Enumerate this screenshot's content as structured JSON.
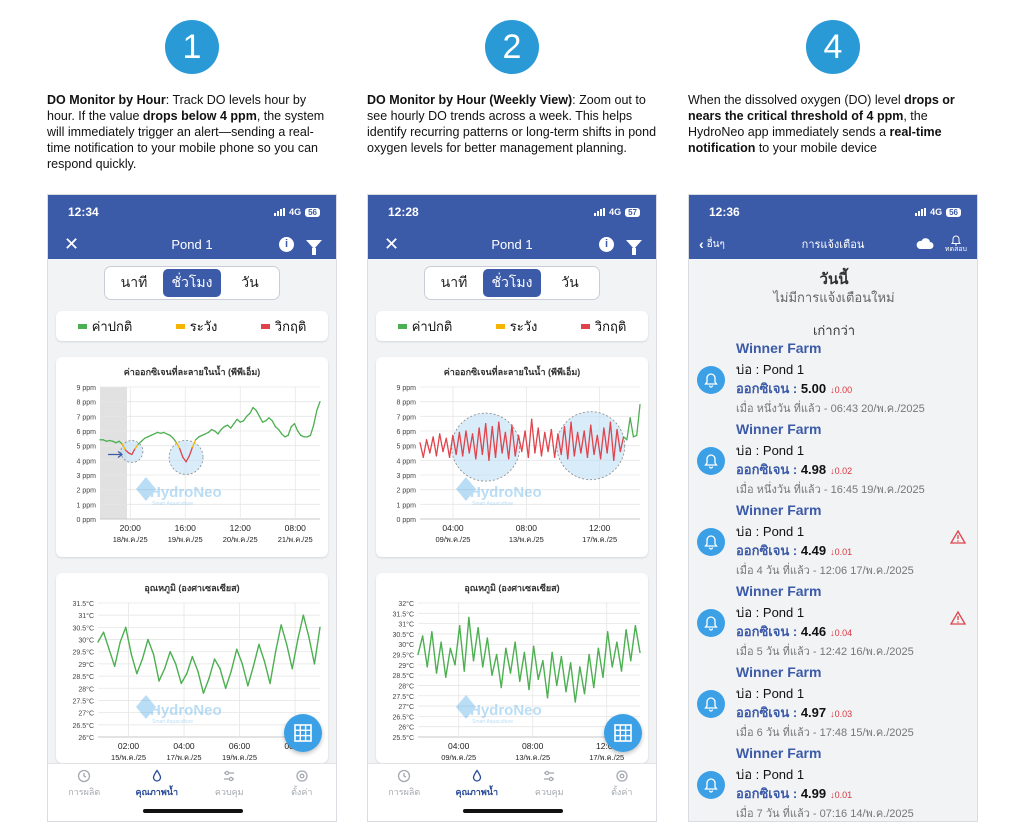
{
  "steps": [
    {
      "number": "1",
      "title": "DO Monitor by Hour",
      "desc_parts": [
        ": Track DO levels hour by hour. If the value ",
        "drops below 4 ppm",
        ", the system will immediately trigger an alert—sending a real-time notification to your mobile phone so you can respond quickly."
      ]
    },
    {
      "number": "2",
      "title": "DO Monitor by Hour (Weekly View)",
      "desc_parts": [
        ":   Zoom out to see hourly DO trends across a week. This helps identify recurring patterns or long-term shifts in pond oxygen levels for better management planning."
      ]
    },
    {
      "number": "4",
      "desc_parts": [
        "When the dissolved oxygen (DO) level ",
        "drops or nears the critical threshold of 4 ppm",
        ", the HydroNeo app immediately sends a ",
        "real-time notification",
        " to your mobile device"
      ]
    }
  ],
  "phone1": {
    "time": "12:34",
    "network": "4G",
    "battery": "56",
    "title": "Pond 1"
  },
  "phone2": {
    "time": "12:28",
    "network": "4G",
    "battery": "57",
    "title": "Pond 1"
  },
  "phone3": {
    "time": "12:36",
    "network": "4G",
    "battery": "56"
  },
  "segment": {
    "minute": "นาที",
    "hour": "ชั่วโมง",
    "day": "วัน"
  },
  "legend": {
    "normal": "ค่าปกติ",
    "caution": "ระวัง",
    "critical": "วิกฤติ"
  },
  "colors": {
    "header": "#3b5aa8",
    "normal": "#4caf50",
    "caution": "#f5b400",
    "critical": "#e0434b",
    "accent": "#2a9ad6"
  },
  "watermark": {
    "brand": "HydroNeo",
    "tagline": "Smart Aquaculture"
  },
  "tabs": {
    "production": "การผลิต",
    "water_quality": "คุณภาพน้ำ",
    "control": "ควบคุม",
    "settings": "ตั้งค่า"
  },
  "chart_data": [
    {
      "type": "line",
      "title": "ค่าออกซิเจนที่ละลายในน้ำ (พีพีเอ็ม)",
      "ylim": [
        0,
        9
      ],
      "y_ticks": [
        "0 ppm",
        "1 ppm",
        "2 ppm",
        "3 ppm",
        "4 ppm",
        "5 ppm",
        "6 ppm",
        "7 ppm",
        "8 ppm",
        "9 ppm"
      ],
      "x_ticks": [
        {
          "time": "20:00",
          "date": "18/พ.ค./25"
        },
        {
          "time": "16:00",
          "date": "19/พ.ค./25"
        },
        {
          "time": "12:00",
          "date": "20/พ.ค./25"
        },
        {
          "time": "08:00",
          "date": "21/พ.ค./25"
        }
      ],
      "series": [
        {
          "values": [
            5.4,
            5.4,
            5.3,
            5.35,
            5.3,
            5.2,
            5.3,
            5.1,
            4.7,
            4.5,
            4.4,
            4.8,
            5.1,
            5.3,
            5.5,
            5.6,
            5.7,
            5.8,
            5.9,
            5.85,
            5.9,
            5.8,
            5.7,
            5.5,
            5.2,
            4.8,
            4.2,
            3.9,
            4.3,
            4.9,
            5.4,
            5.6,
            5.7,
            5.8,
            5.9,
            6.1,
            6.0,
            5.8,
            6.1,
            6.3,
            6.4,
            6.2,
            6.5,
            6.8,
            6.6,
            6.7,
            7.0,
            7.2,
            7.6,
            7.4,
            7.0,
            6.6,
            6.7,
            6.9,
            6.7,
            6.3,
            6.1,
            5.8,
            5.6,
            5.7,
            6.3,
            6.5,
            6.0,
            5.7,
            5.6,
            5.6,
            5.7,
            6.4,
            7.4,
            8.0
          ]
        }
      ],
      "grid": true
    },
    {
      "type": "line",
      "title": "อุณหภูมิ (องศาเซลเซียส)",
      "ylim": [
        26,
        31.5
      ],
      "y_ticks": [
        "26°C",
        "26.5°C",
        "27°C",
        "27.5°C",
        "28°C",
        "28.5°C",
        "29°C",
        "29.5°C",
        "30°C",
        "30.5°C",
        "31°C",
        "31.5°C"
      ],
      "x_ticks": [
        {
          "time": "02:00",
          "date": "15/พ.ค./25"
        },
        {
          "time": "04:00",
          "date": "17/พ.ค./25"
        },
        {
          "time": "06:00",
          "date": "19/พ.ค./25"
        },
        {
          "time": "08:00",
          "date": ""
        }
      ],
      "series": [
        {
          "values": [
            29.9,
            30.3,
            29.6,
            28.9,
            29.9,
            30.5,
            29.4,
            28.6,
            29.2,
            30.0,
            29.4,
            28.3,
            28.8,
            29.5,
            29.0,
            28.2,
            28.6,
            29.3,
            28.7,
            27.8,
            28.4,
            29.2,
            28.8,
            28.0,
            28.7,
            29.6,
            29.0,
            28.1,
            28.9,
            29.8,
            29.1,
            28.2,
            29.5,
            30.6,
            29.8,
            28.8,
            30.0,
            31.0,
            30.1,
            29.0,
            30.5
          ]
        }
      ],
      "grid": true
    },
    {
      "type": "line",
      "title": "ค่าออกซิเจนที่ละลายในน้ำ (พีพีเอ็ม)",
      "ylim": [
        0,
        9
      ],
      "y_ticks": [
        "0 ppm",
        "1 ppm",
        "2 ppm",
        "3 ppm",
        "4 ppm",
        "5 ppm",
        "6 ppm",
        "7 ppm",
        "8 ppm",
        "9 ppm"
      ],
      "x_ticks": [
        {
          "time": "04:00",
          "date": "09/พ.ค./25"
        },
        {
          "time": "08:00",
          "date": "13/พ.ค./25"
        },
        {
          "time": "12:00",
          "date": "17/พ.ค./25"
        }
      ],
      "series": [
        {
          "values": [
            5.2,
            4.2,
            5.4,
            4.5,
            5.6,
            4.3,
            5.8,
            4.6,
            5.5,
            4.2,
            5.7,
            4.4,
            5.9,
            4.3,
            6.0,
            4.5,
            5.8,
            4.1,
            6.2,
            4.4,
            6.5,
            4.0,
            6.3,
            4.2,
            6.6,
            4.5,
            5.9,
            4.1,
            6.4,
            4.3,
            5.7,
            4.6,
            6.0,
            4.2,
            6.8,
            4.5,
            6.2,
            4.3,
            5.9,
            4.6,
            6.1,
            4.2,
            5.8,
            4.4,
            6.3,
            4.1,
            6.6,
            4.3,
            5.9,
            4.5,
            6.0,
            4.2,
            6.4,
            4.4,
            5.7,
            4.1,
            6.2,
            4.5,
            6.6,
            4.0,
            6.1,
            4.6,
            5.6,
            5.4,
            6.9,
            5.6,
            5.7,
            7.8
          ]
        }
      ],
      "grid": true
    },
    {
      "type": "line",
      "title": "อุณหภูมิ (องศาเซลเซียส)",
      "ylim": [
        25.5,
        32
      ],
      "y_ticks": [
        "25.5°C",
        "26°C",
        "26.5°C",
        "27°C",
        "27.5°C",
        "28°C",
        "28.5°C",
        "29°C",
        "29.5°C",
        "30°C",
        "30.5°C",
        "31°C",
        "31.5°C",
        "32°C"
      ],
      "x_ticks": [
        {
          "time": "04:00",
          "date": "09/พ.ค./25"
        },
        {
          "time": "08:00",
          "date": "13/พ.ค./25"
        },
        {
          "time": "12:00",
          "date": "17/พ.ค./25"
        }
      ],
      "series": [
        {
          "values": [
            29.5,
            30.4,
            28.9,
            30.6,
            28.6,
            30.1,
            28.4,
            29.8,
            29.0,
            30.9,
            28.7,
            31.3,
            29.2,
            30.8,
            28.9,
            30.3,
            28.5,
            29.5,
            27.9,
            29.8,
            28.6,
            30.1,
            28.2,
            29.6,
            27.8,
            29.9,
            28.3,
            29.2,
            27.4,
            29.6,
            28.0,
            29.4,
            27.7,
            29.1,
            27.2,
            28.9,
            27.6,
            29.5,
            27.9,
            29.8,
            28.4,
            30.6,
            28.9,
            30.1,
            28.7,
            30.7,
            29.2,
            30.9,
            29.6
          ]
        }
      ],
      "grid": true
    }
  ],
  "notifications": {
    "nav_back": "อื่นๆ",
    "title": "การแจ้งเตือน",
    "test": "ทดสอบ",
    "today": "วันนี้",
    "no_new": "ไม่มีการแจ้งเตือนใหม่",
    "older": "เก่ากว่า",
    "items": [
      {
        "farm": "Winner Farm",
        "pond": "บ่อ : Pond 1",
        "label": "ออกซิเจน :",
        "value": "5.00",
        "delta": "↓0.00",
        "time": "เมื่อ หนึ่งวัน ที่แล้ว - 06:43 20/พ.ค./2025",
        "warning": false
      },
      {
        "farm": "Winner Farm",
        "pond": "บ่อ : Pond 1",
        "label": "ออกซิเจน :",
        "value": "4.98",
        "delta": "↓0.02",
        "time": "เมื่อ หนึ่งวัน ที่แล้ว - 16:45 19/พ.ค./2025",
        "warning": false
      },
      {
        "farm": "Winner Farm",
        "pond": "บ่อ : Pond 1",
        "label": "ออกซิเจน :",
        "value": "4.49",
        "delta": "↓0.01",
        "time": "เมื่อ 4 วัน ที่แล้ว - 12:06 17/พ.ค./2025",
        "warning": true
      },
      {
        "farm": "Winner Farm",
        "pond": "บ่อ : Pond 1",
        "label": "ออกซิเจน :",
        "value": "4.46",
        "delta": "↓0.04",
        "time": "เมื่อ 5 วัน ที่แล้ว - 12:42 16/พ.ค./2025",
        "warning": true
      },
      {
        "farm": "Winner Farm",
        "pond": "บ่อ : Pond 1",
        "label": "ออกซิเจน :",
        "value": "4.97",
        "delta": "↓0.03",
        "time": "เมื่อ 6 วัน ที่แล้ว - 17:48 15/พ.ค./2025",
        "warning": false
      },
      {
        "farm": "Winner Farm",
        "pond": "บ่อ : Pond 1",
        "label": "ออกซิเจน :",
        "value": "4.99",
        "delta": "↓0.01",
        "time": "เมื่อ 7 วัน ที่แล้ว - 07:16 14/พ.ค./2025",
        "warning": false
      }
    ]
  }
}
